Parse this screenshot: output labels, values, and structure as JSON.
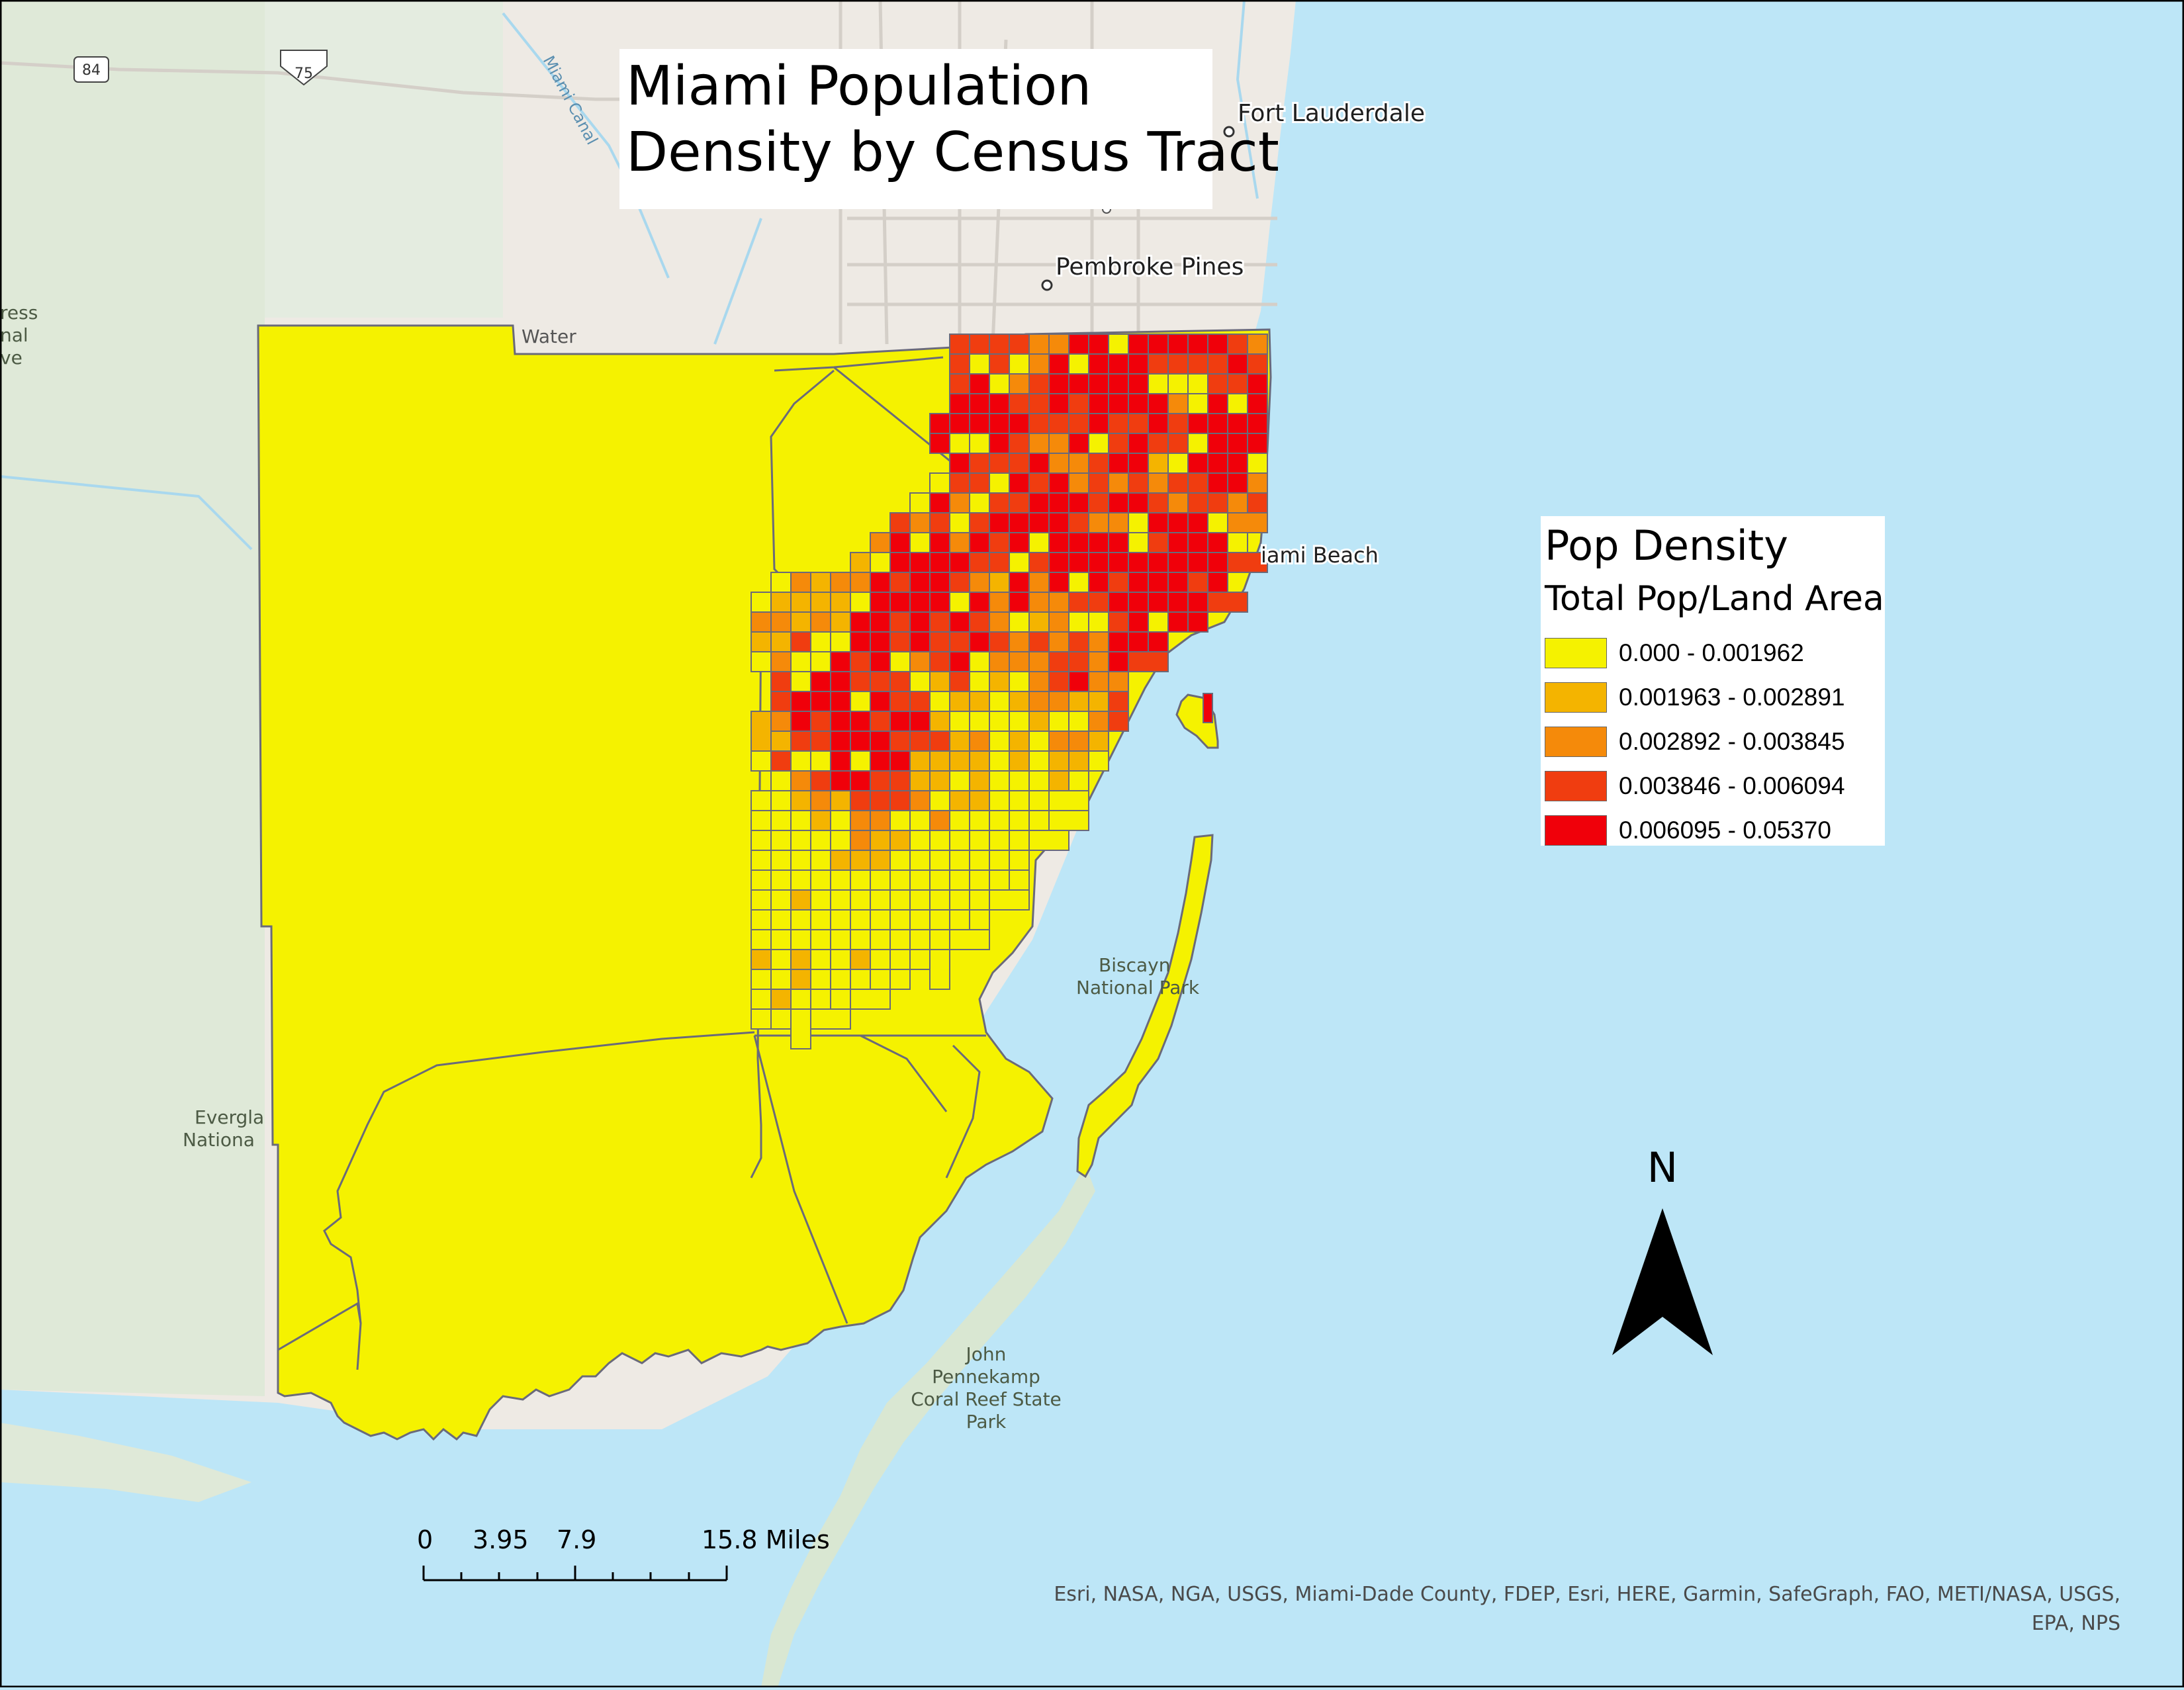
{
  "map": {
    "title_line1": "Miami Population",
    "title_line2": "Density by Census Tract",
    "colors": {
      "water": "#bde6f7",
      "land": "#eeeae4",
      "park_land": "#dfe9d8",
      "tract_border": "#6a6a7a",
      "class1": "#f5f200",
      "class2": "#f4b400",
      "class3": "#f58a0a",
      "class4": "#f03d10",
      "class5": "#f0000a"
    },
    "legend": {
      "title": "Pop Density",
      "subtitle": "Total Pop/Land Area",
      "classes": [
        {
          "label": "0.000 - 0.001962",
          "color": "#f5f200"
        },
        {
          "label": "0.001963 - 0.002891",
          "color": "#f4b400"
        },
        {
          "label": "0.002892 - 0.003845",
          "color": "#f58a0a"
        },
        {
          "label": "0.003846 - 0.006094",
          "color": "#f03d10"
        },
        {
          "label": "0.006095 - 0.05370",
          "color": "#f0000a"
        }
      ]
    },
    "basemap_labels": {
      "fort_lauderdale": "Fort Lauderdale",
      "pembroke_pines": "Pembroke Pines",
      "miami_beach": "iami Beach",
      "water": "Water",
      "miami_canal": "Miami Canal",
      "road_84": "84",
      "road_75": "75",
      "reserve_1": "ress",
      "reserve_2": "nal",
      "reserve_3": "ve",
      "everglades_1": "Evergla",
      "everglades_2": "Nationa",
      "biscayne_1": "Biscayn",
      "biscayne_2": "National Park",
      "pennekamp_1": "John",
      "pennekamp_2": "Pennekamp",
      "pennekamp_3": "Coral Reef State",
      "pennekamp_4": "Park"
    },
    "north_arrow": {
      "label": "N",
      "icon": "north-arrow-icon"
    },
    "scale_bar": {
      "labels": [
        "0",
        "3.95",
        "7.9",
        "15.8 Miles"
      ]
    },
    "credits_line1": "Esri, NASA, NGA, USGS, Miami-Dade County, FDEP, Esri, HERE, Garmin, SafeGraph, FAO, METI/NASA, USGS,",
    "credits_line2": "EPA, NPS"
  }
}
